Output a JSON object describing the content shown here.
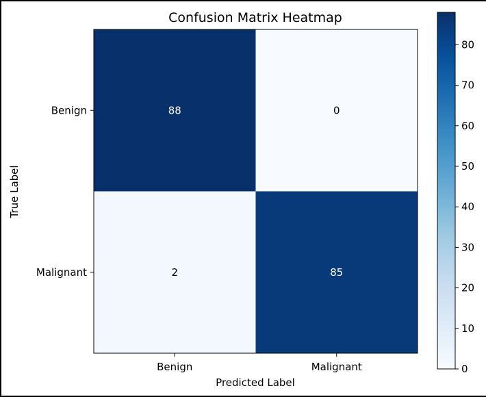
{
  "chart_data": {
    "type": "heatmap",
    "title": "Confusion Matrix Heatmap",
    "xlabel": "Predicted Label",
    "ylabel": "True Label",
    "x_categories": [
      "Benign",
      "Malignant"
    ],
    "y_categories": [
      "Benign",
      "Malignant"
    ],
    "values": [
      [
        88,
        0
      ],
      [
        2,
        85
      ]
    ],
    "colormap": "Blues",
    "colorbar": {
      "min": 0,
      "max": 88,
      "ticks": [
        0,
        10,
        20,
        30,
        40,
        50,
        60,
        70,
        80
      ]
    },
    "colors": {
      "low": "#f7fbff",
      "high": "#08306b",
      "label_on_dark": "#ffffff",
      "label_on_light": "#000000"
    }
  }
}
